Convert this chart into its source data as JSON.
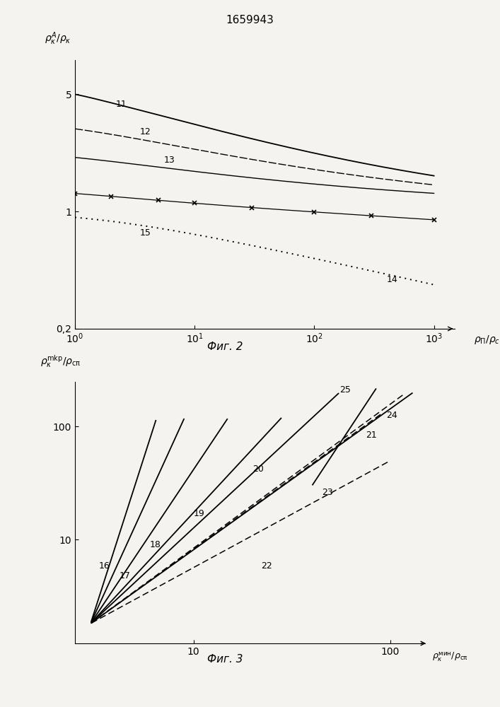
{
  "title": "1659943",
  "fig2_caption": "Фиг. 2",
  "fig3_caption": "Фиг. 3",
  "background_color": "#f5f3ef"
}
